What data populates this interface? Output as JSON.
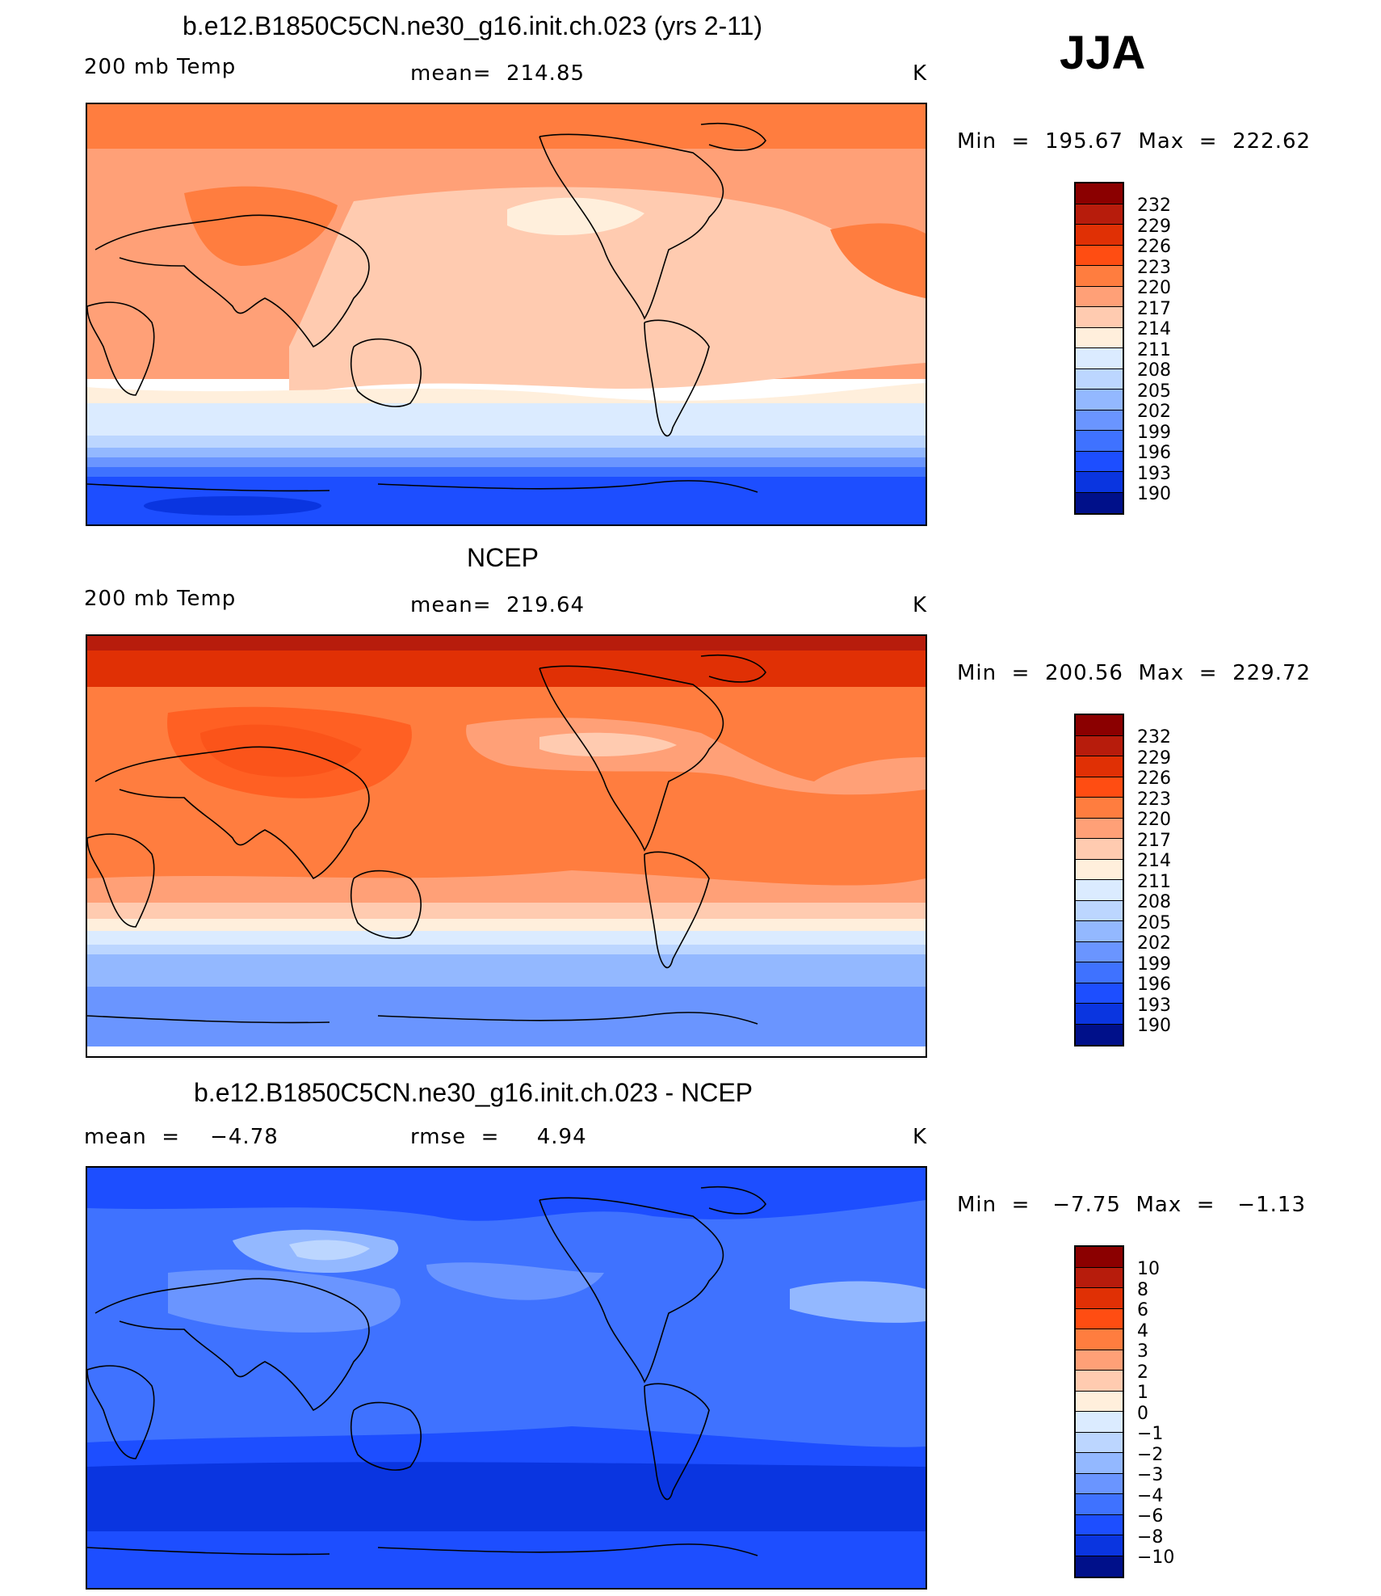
{
  "season": "JJA",
  "colors": {
    "warm": [
      "#8b0000",
      "#b71c0c",
      "#e03005",
      "#ff5a1e",
      "#ff7d3f",
      "#ffa077",
      "#ffcbb0",
      "#ffefdc"
    ],
    "cool": [
      "#dbebff",
      "#bcd6ff",
      "#93b8ff",
      "#6a95ff",
      "#3f72ff",
      "#1d4eff",
      "#0a35e0",
      "#0820b0",
      "#00108a"
    ],
    "coast": "#000000"
  },
  "panels": [
    {
      "id": "model",
      "title": "b.e12.B1850C5CN.ne30_g16.init.ch.023 (yrs 2-11)",
      "left_label": "200 mb Temp",
      "center_label": "mean=  214.85",
      "units": "K",
      "minmax": "Min  =  195.67  Max  =  222.62",
      "colorbar": {
        "levels": [
          "232",
          "229",
          "226",
          "223",
          "220",
          "217",
          "214",
          "211",
          "208",
          "205",
          "202",
          "199",
          "196",
          "193",
          "190"
        ],
        "colors": [
          "#8b0000",
          "#b71c0c",
          "#e03005",
          "#ff4d12",
          "#ff7d3f",
          "#ffa077",
          "#ffcbb0",
          "#ffefdc",
          "#dbebff",
          "#bcd6ff",
          "#93b8ff",
          "#6a95ff",
          "#3f72ff",
          "#1d4eff",
          "#0a35e0",
          "#00108a"
        ]
      }
    },
    {
      "id": "obs",
      "title": "NCEP",
      "left_label": "200 mb Temp",
      "center_label": "mean=  219.64",
      "units": "K",
      "minmax": "Min  =  200.56  Max  =  229.72",
      "colorbar": {
        "levels": [
          "232",
          "229",
          "226",
          "223",
          "220",
          "217",
          "214",
          "211",
          "208",
          "205",
          "202",
          "199",
          "196",
          "193",
          "190"
        ],
        "colors": [
          "#8b0000",
          "#b71c0c",
          "#e03005",
          "#ff4d12",
          "#ff7d3f",
          "#ffa077",
          "#ffcbb0",
          "#ffefdc",
          "#dbebff",
          "#bcd6ff",
          "#93b8ff",
          "#6a95ff",
          "#3f72ff",
          "#1d4eff",
          "#0a35e0",
          "#00108a"
        ]
      }
    },
    {
      "id": "diff",
      "title": "b.e12.B1850C5CN.ne30_g16.init.ch.023 - NCEP",
      "left_label": "mean  =    −4.78",
      "center_label": "rmse  =     4.94",
      "units": "K",
      "minmax": "Min  =   −7.75  Max  =   −1.13",
      "colorbar": {
        "levels": [
          "10",
          "8",
          "6",
          "4",
          "3",
          "2",
          "1",
          "0",
          "−1",
          "−2",
          "−3",
          "−4",
          "−6",
          "−8",
          "−10"
        ],
        "colors": [
          "#8b0000",
          "#b71c0c",
          "#e03005",
          "#ff4d12",
          "#ff7d3f",
          "#ffa077",
          "#ffcbb0",
          "#ffefdc",
          "#dbebff",
          "#bcd6ff",
          "#93b8ff",
          "#6a95ff",
          "#3f72ff",
          "#1d4eff",
          "#0a35e0",
          "#00108a"
        ]
      }
    }
  ]
}
